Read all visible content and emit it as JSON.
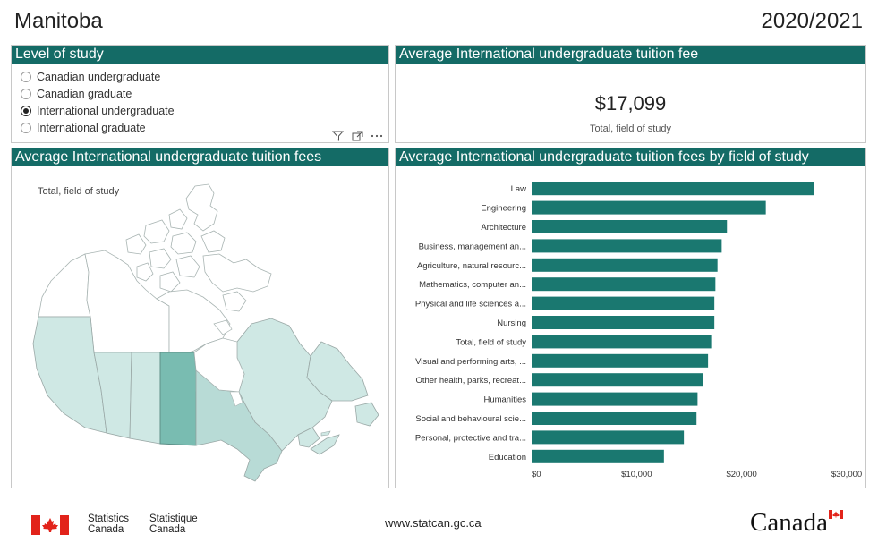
{
  "header": {
    "region": "Manitoba",
    "year": "2020/2021"
  },
  "level_of_study": {
    "title": "Level of study",
    "options": [
      {
        "label": "Canadian undergraduate",
        "checked": false
      },
      {
        "label": "Canadian graduate",
        "checked": false
      },
      {
        "label": "International undergraduate",
        "checked": true
      },
      {
        "label": "International graduate",
        "checked": false
      }
    ],
    "tools": [
      "filter-icon",
      "focus-mode-icon",
      "more-options-icon"
    ]
  },
  "kpi": {
    "title": "Average International undergraduate tuition fee",
    "value": "$17,099",
    "label": "Total, field of study"
  },
  "map": {
    "title": "Average International undergraduate tuition fees",
    "subtitle": "Total, field of study",
    "colors": {
      "highlight": "#79bcb1",
      "light": "#b8dbd6",
      "lighter": "#cfe8e4",
      "none": "#ffffff",
      "stroke": "#9aa8a6"
    }
  },
  "chart_data": {
    "type": "bar",
    "orientation": "horizontal",
    "title": "Average International undergraduate tuition fees by field of study",
    "categories": [
      "Law",
      "Engineering",
      "Architecture",
      "Business, management an...",
      "Agriculture, natural resourc...",
      "Mathematics, computer an...",
      "Physical and life sciences a...",
      "Nursing",
      "Total, field of study",
      "Visual and performing arts, ...",
      "Other health, parks, recreat...",
      "Humanities",
      "Social and behavioural scie...",
      "Personal, protective and tra...",
      "Education"
    ],
    "values": [
      26900,
      22300,
      18600,
      18100,
      17700,
      17500,
      17400,
      17400,
      17099,
      16800,
      16300,
      15800,
      15700,
      14500,
      12600
    ],
    "xlim": [
      0,
      30000
    ],
    "xticks": [
      "$0",
      "$10,000",
      "$20,000",
      "$30,000"
    ],
    "bar_color": "#1a7870",
    "grid": false,
    "legend": "none"
  },
  "footer": {
    "agency_en_line1": "Statistics",
    "agency_en_line2": "Canada",
    "agency_fr_line1": "Statistique",
    "agency_fr_line2": "Canada",
    "url": "www.statcan.gc.ca",
    "wordmark": "Canada"
  }
}
